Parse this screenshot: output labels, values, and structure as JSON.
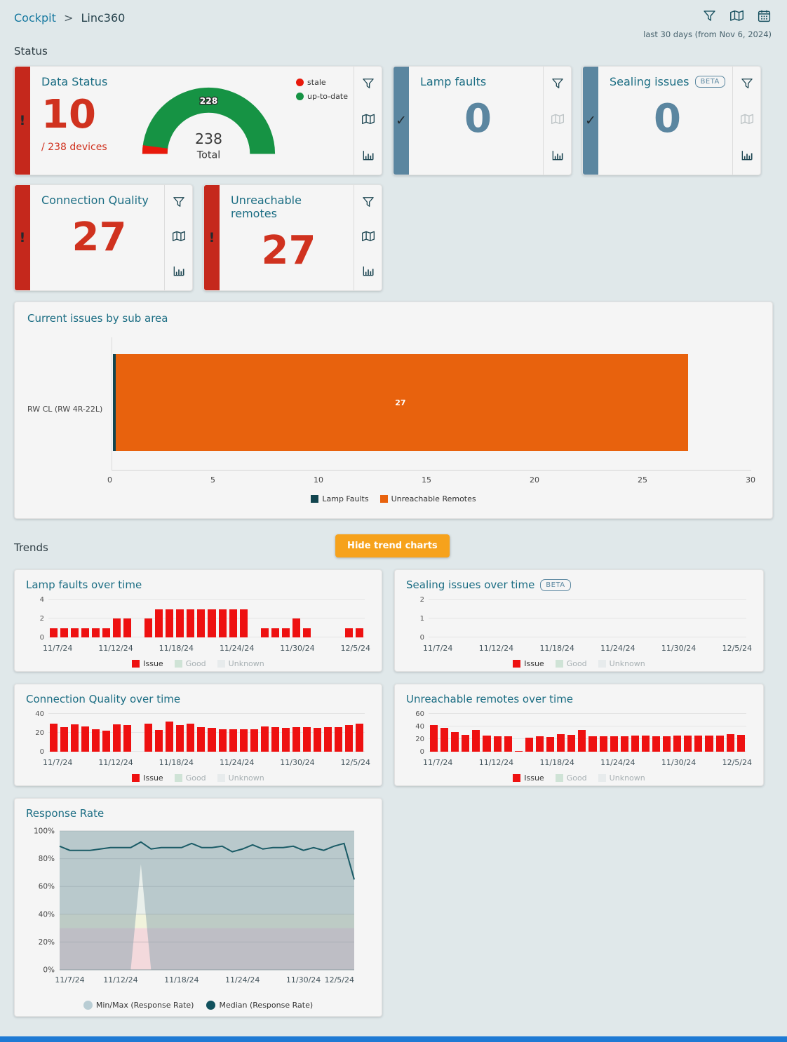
{
  "header": {
    "breadcrumb": {
      "root": "Cockpit",
      "separator": ">",
      "current": "Linc360"
    },
    "date_range": "last 30 days (from Nov 6, 2024)"
  },
  "sections": {
    "status": "Status",
    "trends": "Trends"
  },
  "trends": {
    "hide_button_label": "Hide trend charts"
  },
  "status_cards": {
    "data_status": {
      "title": "Data Status",
      "value": "10",
      "subtitle": "/ 238 devices",
      "gauge": {
        "arc_label": "228",
        "center_value": "238",
        "center_label": "Total",
        "segments": [
          {
            "label": "stale",
            "value": 10,
            "color": "#e8190b"
          },
          {
            "label": "up-to-date",
            "value": 228,
            "color": "#169344"
          }
        ]
      }
    },
    "lamp_faults": {
      "title": "Lamp faults",
      "value": "0"
    },
    "sealing_issues": {
      "title": "Sealing issues",
      "badge": "BETA",
      "value": "0"
    },
    "connection_quality": {
      "title": "Connection Quality",
      "value": "27"
    },
    "unreachable_remotes": {
      "title": "Unreachable remotes",
      "value": "27"
    }
  },
  "colors": {
    "alert_red": "#c5281c",
    "value_red": "#d0321f",
    "steel_blue": "#5b86a0",
    "teal_title": "#1b6d83",
    "orange_bar": "#e8620d",
    "dark_teal_bar": "#12454f",
    "issue_red": "#ee1111",
    "button_orange": "#f6a21c"
  },
  "chart_data": [
    {
      "id": "sub_area",
      "type": "bar",
      "orientation": "horizontal",
      "title": "Current issues by sub area",
      "categories": [
        "RW CL (RW 4R-22L)"
      ],
      "series": [
        {
          "name": "Lamp Faults",
          "color": "#12454f",
          "values": [
            0
          ]
        },
        {
          "name": "Unreachable Remotes",
          "color": "#e8620d",
          "values": [
            27
          ]
        }
      ],
      "bar_label": "27",
      "xlim": [
        0,
        30
      ],
      "xticks": [
        0,
        5,
        10,
        15,
        20,
        25,
        30
      ],
      "legend": [
        {
          "label": "Lamp Faults",
          "color": "#12454f",
          "active": true
        },
        {
          "label": "Unreachable Remotes",
          "color": "#e8620d",
          "active": true
        }
      ]
    },
    {
      "id": "lamp_trend",
      "type": "bar",
      "title": "Lamp faults over time",
      "ylim": [
        0,
        4
      ],
      "yticks": [
        0,
        2,
        4
      ],
      "bar_color": "#ee1111",
      "values": [
        1,
        1,
        1,
        1,
        1,
        1,
        2,
        2,
        0,
        2,
        3,
        3,
        3,
        3,
        3,
        3,
        3,
        3,
        3,
        0,
        1,
        1,
        1,
        2,
        1,
        0,
        0,
        0,
        1,
        1
      ],
      "xticks": [
        "11/7/24",
        "11/12/24",
        "11/18/24",
        "11/24/24",
        "11/30/24",
        "12/5/24"
      ],
      "legend": [
        {
          "label": "Issue",
          "color": "#ee1111",
          "active": true
        },
        {
          "label": "Good",
          "color": "#cfe3d6",
          "active": false
        },
        {
          "label": "Unknown",
          "color": "#e7ebec",
          "active": false
        }
      ]
    },
    {
      "id": "sealing_trend",
      "type": "bar",
      "title": "Sealing issues over time",
      "badge": "BETA",
      "ylim": [
        0,
        2
      ],
      "yticks": [
        0,
        1,
        2
      ],
      "bar_color": "#ee1111",
      "values": [
        0,
        0,
        0,
        0,
        0,
        0,
        0,
        0,
        0,
        0,
        0,
        0,
        0,
        0,
        0,
        0,
        0,
        0,
        0,
        0,
        0,
        0,
        0,
        0,
        0,
        0,
        0,
        0,
        0,
        0
      ],
      "xticks": [
        "11/7/24",
        "11/12/24",
        "11/18/24",
        "11/24/24",
        "11/30/24",
        "12/5/24"
      ],
      "legend": [
        {
          "label": "Issue",
          "color": "#ee1111",
          "active": true
        },
        {
          "label": "Good",
          "color": "#cfe3d6",
          "active": false
        },
        {
          "label": "Unknown",
          "color": "#e7ebec",
          "active": false
        }
      ]
    },
    {
      "id": "conn_trend",
      "type": "bar",
      "title": "Connection Quality over time",
      "ylim": [
        0,
        40
      ],
      "yticks": [
        0,
        20,
        40
      ],
      "bar_color": "#ee1111",
      "values": [
        30,
        26,
        29,
        27,
        24,
        22,
        29,
        28,
        0,
        30,
        23,
        32,
        28,
        30,
        26,
        25,
        24,
        24,
        24,
        24,
        27,
        26,
        25,
        26,
        26,
        25,
        26,
        26,
        28,
        30
      ],
      "xticks": [
        "11/7/24",
        "11/12/24",
        "11/18/24",
        "11/24/24",
        "11/30/24",
        "12/5/24"
      ],
      "legend": [
        {
          "label": "Issue",
          "color": "#ee1111",
          "active": true
        },
        {
          "label": "Good",
          "color": "#cfe3d6",
          "active": false
        },
        {
          "label": "Unknown",
          "color": "#e7ebec",
          "active": false
        }
      ]
    },
    {
      "id": "unreach_trend",
      "type": "bar",
      "title": "Unreachable remotes over time",
      "ylim": [
        0,
        60
      ],
      "yticks": [
        0,
        20,
        40,
        60
      ],
      "bar_color": "#ee1111",
      "values": [
        42,
        38,
        31,
        27,
        34,
        26,
        25,
        25,
        1,
        22,
        24,
        23,
        28,
        27,
        35,
        25,
        25,
        25,
        25,
        26,
        26,
        25,
        25,
        26,
        26,
        26,
        26,
        26,
        28,
        27
      ],
      "xticks": [
        "11/7/24",
        "11/12/24",
        "11/18/24",
        "11/24/24",
        "11/30/24",
        "12/5/24"
      ],
      "legend": [
        {
          "label": "Issue",
          "color": "#ee1111",
          "active": true
        },
        {
          "label": "Good",
          "color": "#cfe3d6",
          "active": false
        },
        {
          "label": "Unknown",
          "color": "#e7ebec",
          "active": false
        }
      ]
    },
    {
      "id": "response_rate",
      "type": "area",
      "title": "Response Rate",
      "ylim": [
        0,
        100
      ],
      "yticks": [
        0,
        20,
        40,
        60,
        80,
        100
      ],
      "ytick_suffix": "%",
      "median": [
        89,
        86,
        86,
        86,
        87,
        88,
        88,
        88,
        92,
        87,
        88,
        88,
        88,
        91,
        88,
        88,
        89,
        85,
        87,
        90,
        87,
        88,
        88,
        89,
        86,
        88,
        86,
        89,
        91,
        65
      ],
      "min": [
        0,
        0,
        0,
        0,
        0,
        0,
        0,
        0,
        76,
        0,
        0,
        0,
        0,
        0,
        0,
        0,
        0,
        0,
        0,
        0,
        0,
        0,
        0,
        0,
        0,
        0,
        0,
        0,
        0,
        0
      ],
      "max": [
        100,
        100,
        100,
        100,
        100,
        100,
        100,
        100,
        100,
        100,
        100,
        100,
        100,
        100,
        100,
        100,
        100,
        100,
        100,
        100,
        100,
        100,
        100,
        100,
        100,
        100,
        100,
        100,
        100,
        100
      ],
      "xticks": [
        "11/7/24",
        "11/12/24",
        "11/18/24",
        "11/24/24",
        "11/30/24",
        "12/5/24"
      ],
      "xtick_indices": [
        1,
        6,
        12,
        18,
        24,
        29
      ],
      "bands": [
        {
          "from": 0,
          "to": 30,
          "color": "#f3d9dc"
        },
        {
          "from": 30,
          "to": 40,
          "color": "#f1f3dc"
        },
        {
          "from": 40,
          "to": 100,
          "color": "#e9efeb"
        }
      ],
      "band_fill": "rgba(138,164,173,0.5)",
      "line_color": "#1a5b66",
      "legend": [
        {
          "label": "Min/Max (Response Rate)",
          "color": "#b9cdd4",
          "shape": "circle"
        },
        {
          "label": "Median (Response Rate)",
          "color": "#12525e",
          "shape": "circle"
        }
      ]
    }
  ]
}
